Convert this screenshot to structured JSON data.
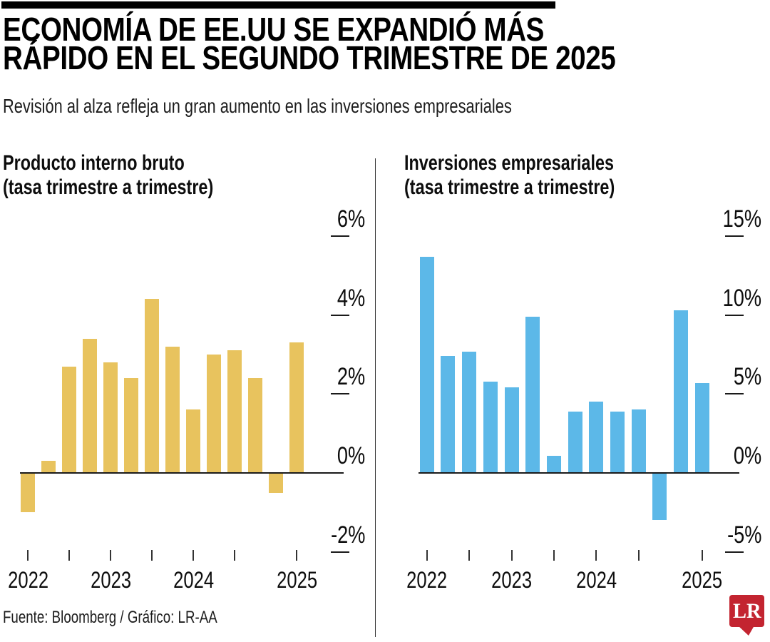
{
  "header": {
    "title_line1": "ECONOMÍA DE EE.UU SE EXPANDIÓ MÁS",
    "title_line2": "RÁPIDO EN EL SEGUNDO TRIMESTRE DE 2025",
    "subtitle": "Revisión al alza refleja un gran aumento en las inversiones empresariales"
  },
  "colors": {
    "gdp_bar": "#E8C35E",
    "investment_bar": "#5CB8E8",
    "axis": "#1A1A1A",
    "logo_red": "#C32430"
  },
  "chart_data": [
    {
      "type": "bar",
      "title": "Producto interno bruto",
      "subtitle": "(tasa trimestre a trimestre)",
      "unit": "%",
      "legend": "none",
      "grid": "off",
      "categories": [
        "2022-T1",
        "2022-T2",
        "2022-T3",
        "2022-T4",
        "2023-T1",
        "2023-T2",
        "2023-T3",
        "2023-T4",
        "2024-T1",
        "2024-T2",
        "2024-T3",
        "2024-T4",
        "2025-T1",
        "2025-T2"
      ],
      "values": [
        -1.0,
        0.3,
        2.7,
        3.4,
        2.8,
        2.4,
        4.4,
        3.2,
        1.6,
        3.0,
        3.1,
        2.4,
        -0.5,
        3.3
      ],
      "ylim": [
        -2,
        6
      ],
      "y_ticks": [
        {
          "label": "6%",
          "value": 6
        },
        {
          "label": "4%",
          "value": 4
        },
        {
          "label": "2%",
          "value": 2
        },
        {
          "label": "0%",
          "value": 0
        },
        {
          "label": "-2%",
          "value": -2
        }
      ],
      "x_tick_bar_indices": [
        0,
        2,
        4,
        6,
        8,
        10,
        13
      ],
      "x_year_labels": [
        {
          "label": "2022",
          "bar_index": 0
        },
        {
          "label": "2023",
          "bar_index": 4
        },
        {
          "label": "2024",
          "bar_index": 8
        },
        {
          "label": "2025",
          "bar_index": 13
        }
      ],
      "bar_color_key": "gdp_bar",
      "bar_name": "gdp-bar"
    },
    {
      "type": "bar",
      "title": "Inversiones empresariales",
      "subtitle": "(tasa trimestre a trimestre)",
      "unit": "%",
      "legend": "none",
      "grid": "off",
      "categories": [
        "2022-T1",
        "2022-T2",
        "2022-T3",
        "2022-T4",
        "2023-T1",
        "2023-T2",
        "2023-T3",
        "2023-T4",
        "2024-T1",
        "2024-T2",
        "2024-T3",
        "2024-T4",
        "2025-T1",
        "2025-T2"
      ],
      "values": [
        13.7,
        7.4,
        7.7,
        5.8,
        5.4,
        9.9,
        1.1,
        3.9,
        4.5,
        3.9,
        4.0,
        -3.0,
        10.3,
        5.7
      ],
      "ylim": [
        -5,
        15
      ],
      "y_ticks": [
        {
          "label": "15%",
          "value": 15
        },
        {
          "label": "10%",
          "value": 10
        },
        {
          "label": "5%",
          "value": 5
        },
        {
          "label": "0%",
          "value": 0
        },
        {
          "label": "-5%",
          "value": -5
        }
      ],
      "x_tick_bar_indices": [
        0,
        2,
        4,
        6,
        8,
        10,
        13
      ],
      "x_year_labels": [
        {
          "label": "2022",
          "bar_index": 0
        },
        {
          "label": "2023",
          "bar_index": 4
        },
        {
          "label": "2024",
          "bar_index": 8
        },
        {
          "label": "2025",
          "bar_index": 13
        }
      ],
      "bar_color_key": "investment_bar",
      "bar_name": "investment-bar"
    }
  ],
  "footer": {
    "source": "Fuente: Bloomberg / Gráfico: LR-AA",
    "logo_text": "LR"
  }
}
